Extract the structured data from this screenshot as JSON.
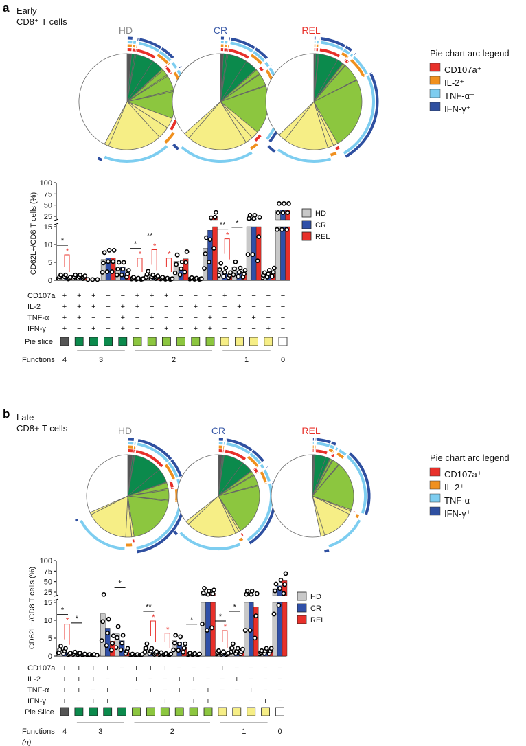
{
  "arc_colors": {
    "CD107a": "#e8302a",
    "IL-2": "#f0901e",
    "TNF": "#7dcdf0",
    "IFN": "#2e4fa0"
  },
  "group_colors": {
    "HD": "#c8c8c8",
    "CR": "#3050a8",
    "REL": "#e8302a"
  },
  "slice_colors": {
    "4": "#555555",
    "3": "#0b8a4c",
    "2": "#8cc63f",
    "1": "#f6ee86",
    "0": "#ffffff"
  },
  "panels": [
    {
      "letter": "a",
      "title_line1": "Early",
      "title_line2": "CD8⁺ T cells",
      "pie_titles": [
        "HD",
        "CR",
        "REL"
      ],
      "pie_title_colors": [
        "#8a8a8a",
        "#3a5aa8",
        "#e8302a"
      ],
      "legend_title": "Pie chart arc legend",
      "arc_legend": [
        "CD107a⁺",
        "IL-2⁺",
        "TNF-α⁺",
        "IFN-γ⁺"
      ]
    },
    {
      "letter": "b",
      "title_line1": "Late",
      "title_line2": "CD8+ T cells",
      "pie_titles": [
        "HD",
        "CR",
        "REL"
      ],
      "pie_title_colors": [
        "#8a8a8a",
        "#3a5aa8",
        "#e8302a"
      ],
      "legend_title": "Pie chart arc legend",
      "arc_legend": [
        "CD107a⁺",
        "IL-2⁺",
        "TNF-α⁺",
        "IFN-γ⁺"
      ]
    }
  ],
  "chart_data": [
    {
      "type": "bar",
      "title": "Early CD8+ T cells",
      "ylabel": "CD62L+/CD8 T cells (%)",
      "yticks_lower": [
        0,
        5,
        10,
        15
      ],
      "yticks_upper": [
        25,
        50,
        75,
        100
      ],
      "ylim": [
        0,
        100
      ],
      "axis_break": [
        15,
        25
      ],
      "legend": [
        "HD",
        "CR",
        "REL"
      ],
      "legend_placement": "right",
      "row_labels": [
        "CD107a",
        "IL-2",
        "TNF-α",
        "IFN-γ",
        "Pie slice",
        "Functions",
        ""
      ],
      "markers": {
        "CD107a": [
          "+",
          "+",
          "+",
          "+",
          "−",
          "+",
          "+",
          "+",
          "−",
          "−",
          "−",
          "+",
          "−",
          "−",
          "−",
          "−"
        ],
        "IL-2": [
          "+",
          "+",
          "+",
          "−",
          "+",
          "+",
          "−",
          "−",
          "+",
          "+",
          "−",
          "−",
          "+",
          "−",
          "−",
          "−"
        ],
        "TNF": [
          "+",
          "+",
          "−",
          "+",
          "+",
          "−",
          "+",
          "−",
          "+",
          "−",
          "+",
          "−",
          "−",
          "+",
          "−",
          "−"
        ],
        "IFN": [
          "+",
          "−",
          "+",
          "+",
          "+",
          "−",
          "−",
          "+",
          "−",
          "+",
          "+",
          "−",
          "−",
          "−",
          "+",
          "−"
        ]
      },
      "functions": [
        4,
        3,
        3,
        3,
        3,
        2,
        2,
        2,
        2,
        2,
        2,
        1,
        1,
        1,
        1,
        0
      ],
      "function_groups": [
        {
          "label": "4",
          "from": 0,
          "to": 0,
          "line": false
        },
        {
          "label": "3",
          "from": 1,
          "to": 4,
          "line": true
        },
        {
          "label": "2",
          "from": 5,
          "to": 10,
          "line": true
        },
        {
          "label": "1",
          "from": 11,
          "to": 14,
          "line": true
        },
        {
          "label": "0",
          "from": 15,
          "to": 15,
          "line": false
        }
      ],
      "series": [
        {
          "name": "HD",
          "values": [
            1.0,
            1.0,
            0.1,
            5.8,
            3.7,
            0.5,
            1.8,
            0.5,
            5.3,
            0.4,
            9.0,
            3.5,
            3.8,
            20,
            1.5,
            40
          ]
        },
        {
          "name": "CR",
          "values": [
            1.0,
            1.0,
            0.1,
            6.3,
            3.7,
            0.3,
            1.0,
            0.3,
            3.8,
            0.3,
            14.0,
            2.5,
            2.5,
            20,
            2.0,
            40
          ]
        },
        {
          "name": "REL",
          "values": [
            0.5,
            0.8,
            0.1,
            6.3,
            2.0,
            0.2,
            0.8,
            0.2,
            6.0,
            0.2,
            25,
            1.5,
            2.0,
            15,
            2.5,
            40
          ]
        }
      ],
      "significance": [
        {
          "category": 0,
          "text": "*",
          "color": "black",
          "comparison": "HD vs REL"
        },
        {
          "category": 0,
          "text": "*",
          "color": "red",
          "comparison": "CR vs REL"
        },
        {
          "category": 5,
          "text": "*",
          "color": "black",
          "comparison": "HD vs REL"
        },
        {
          "category": 5,
          "text": "*",
          "color": "red",
          "comparison": "CR vs REL"
        },
        {
          "category": 6,
          "text": "**",
          "color": "black",
          "comparison": "HD vs REL"
        },
        {
          "category": 6,
          "text": "*",
          "color": "red",
          "comparison": "CR vs REL"
        },
        {
          "category": 7,
          "text": "*",
          "color": "red",
          "comparison": "CR vs REL"
        },
        {
          "category": 11,
          "text": "**",
          "color": "black",
          "comparison": "HD vs REL"
        },
        {
          "category": 11,
          "text": "*",
          "color": "red",
          "comparison": "CR vs REL"
        },
        {
          "category": 12,
          "text": "*",
          "color": "black",
          "comparison": "HD vs REL"
        }
      ],
      "pies": [
        {
          "name": "HD",
          "fractions": [
            1.5,
            1,
            0.5,
            6,
            4,
            0.5,
            2,
            0.5,
            5,
            0.5,
            9,
            3.5,
            4,
            18,
            1.5,
            42
          ]
        },
        {
          "name": "CR",
          "fractions": [
            1,
            1,
            0.5,
            6.5,
            4,
            0.3,
            1.5,
            0.3,
            4,
            0.3,
            16,
            2.5,
            2.5,
            20,
            2,
            36
          ]
        },
        {
          "name": "REL",
          "fractions": [
            0.6,
            0.8,
            0.3,
            6.5,
            2,
            0.2,
            0.8,
            0.2,
            6,
            0.2,
            24,
            1.5,
            2,
            15,
            2.5,
            37
          ]
        }
      ]
    },
    {
      "type": "bar",
      "title": "Late CD8+ T cells",
      "ylabel": "CD62L−/CD8 T cells (%)",
      "yticks_lower": [
        0,
        5,
        10,
        15
      ],
      "yticks_upper": [
        25,
        50,
        75,
        100
      ],
      "ylim": [
        0,
        100
      ],
      "axis_break": [
        15,
        25
      ],
      "legend": [
        "HD",
        "CR",
        "REL"
      ],
      "legend_placement": "right",
      "row_labels": [
        "CD107a",
        "IL-2",
        "TNF-α",
        "IFN-γ",
        "Pie Slice",
        "Functions",
        "(n)"
      ],
      "markers": {
        "CD107a": [
          "+",
          "+",
          "+",
          "+",
          "−",
          "+",
          "+",
          "+",
          "−",
          "−",
          "−",
          "+",
          "−",
          "−",
          "−",
          "−"
        ],
        "IL-2": [
          "+",
          "+",
          "+",
          "−",
          "+",
          "+",
          "−",
          "−",
          "+",
          "+",
          "−",
          "−",
          "+",
          "−",
          "−",
          "−"
        ],
        "TNF": [
          "+",
          "+",
          "−",
          "+",
          "+",
          "−",
          "+",
          "−",
          "+",
          "−",
          "+",
          "−",
          "−",
          "+",
          "−",
          "−"
        ],
        "IFN": [
          "+",
          "−",
          "+",
          "+",
          "+",
          "−",
          "−",
          "+",
          "−",
          "+",
          "+",
          "−",
          "−",
          "−",
          "+",
          "−"
        ]
      },
      "functions": [
        4,
        3,
        3,
        3,
        3,
        2,
        2,
        2,
        2,
        2,
        2,
        1,
        1,
        1,
        1,
        0
      ],
      "function_groups": [
        {
          "label": "4",
          "from": 0,
          "to": 0,
          "line": false
        },
        {
          "label": "3",
          "from": 1,
          "to": 4,
          "line": true
        },
        {
          "label": "2",
          "from": 5,
          "to": 10,
          "line": true
        },
        {
          "label": "1",
          "from": 11,
          "to": 14,
          "line": true
        },
        {
          "label": "0",
          "from": 15,
          "to": 15,
          "line": false
        }
      ],
      "series": [
        {
          "name": "HD",
          "values": [
            2.0,
            0.7,
            0.2,
            11.8,
            6.2,
            0.3,
            2.5,
            0.6,
            4.3,
            0.5,
            25,
            1.0,
            2.5,
            20,
            1.0,
            33
          ]
        },
        {
          "name": "CR",
          "values": [
            1.5,
            0.5,
            0.2,
            7.8,
            4.3,
            0.2,
            1.5,
            0.4,
            4.0,
            0.4,
            20,
            0.8,
            1.5,
            20,
            1.5,
            40
          ]
        },
        {
          "name": "REL",
          "values": [
            0.5,
            0.3,
            0.1,
            4.2,
            1.5,
            0.2,
            0.8,
            0.3,
            2.5,
            0.3,
            22,
            0.5,
            1.3,
            13.8,
            1.5,
            52
          ]
        }
      ],
      "significance": [
        {
          "category": 0,
          "text": "*",
          "color": "black",
          "comparison": "HD vs REL"
        },
        {
          "category": 0,
          "text": "*",
          "color": "red",
          "comparison": "CR vs REL"
        },
        {
          "category": 1,
          "text": "*",
          "color": "black",
          "comparison": "HD vs REL"
        },
        {
          "category": 4,
          "text": "*",
          "color": "black",
          "comparison": "HD vs REL"
        },
        {
          "category": 6,
          "text": "**",
          "color": "black",
          "comparison": "HD vs REL"
        },
        {
          "category": 6,
          "text": "*",
          "color": "red",
          "comparison": "CR vs REL"
        },
        {
          "category": 7,
          "text": "*",
          "color": "red",
          "comparison": "CR vs REL"
        },
        {
          "category": 9,
          "text": "*",
          "color": "black",
          "comparison": "HD vs REL"
        },
        {
          "category": 11,
          "text": "*",
          "color": "black",
          "comparison": "HD vs REL"
        },
        {
          "category": 11,
          "text": "*",
          "color": "red",
          "comparison": "CR vs REL"
        },
        {
          "category": 12,
          "text": "*",
          "color": "black",
          "comparison": "HD vs REL"
        }
      ],
      "pies": [
        {
          "name": "HD",
          "fractions": [
            2,
            0.7,
            0.3,
            12,
            6,
            0.3,
            2.5,
            0.6,
            4.3,
            0.5,
            22,
            1,
            2.5,
            18,
            1,
            34
          ]
        },
        {
          "name": "CR",
          "fractions": [
            1.5,
            0.5,
            0.3,
            8,
            4.5,
            0.2,
            1.5,
            0.4,
            4,
            0.4,
            20,
            0.8,
            1.5,
            20,
            1.5,
            36
          ]
        },
        {
          "name": "REL",
          "fractions": [
            0.5,
            0.3,
            0.2,
            4,
            1.5,
            0.2,
            0.8,
            0.3,
            2.5,
            0.3,
            18,
            0.5,
            1.3,
            12,
            1.5,
            50
          ]
        }
      ]
    }
  ]
}
